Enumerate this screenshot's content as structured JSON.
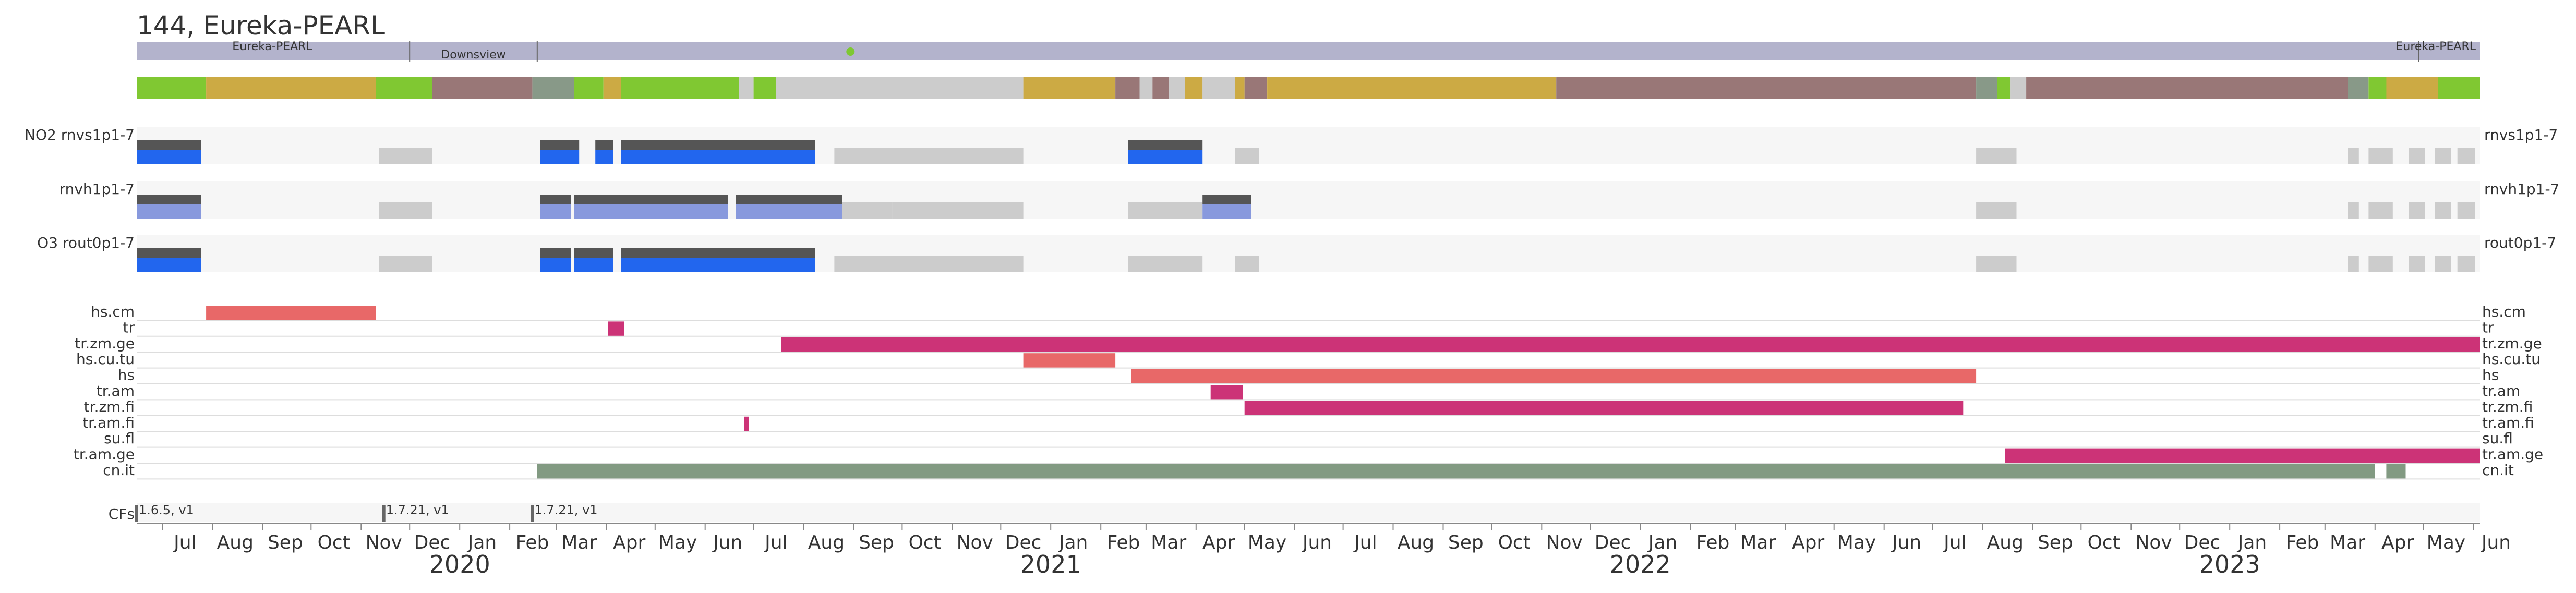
{
  "colors": {
    "timeline": "#b3b3cc",
    "track_bg": "#f6f6f6",
    "gap": "#cccccc",
    "data_dark": "#555555",
    "data_blue": "#2266ee",
    "data_blue_light": "#8899dd",
    "green_marker": "#7ec832",
    "flag_salmon": "#e86868",
    "flag_magenta": "#cc3377",
    "flag_sage": "#829a82",
    "status_colors": {
      "green": "#80c832",
      "gold": "#ccaa44",
      "brown": "#997777",
      "sage": "#889988",
      "gray": "#cccccc"
    }
  },
  "chart_data": {
    "type": "timeline",
    "title": "144, Eureka-PEARL",
    "x_range": [
      "2019-06-15",
      "2023-06-05"
    ],
    "months": [
      "Jul",
      "Aug",
      "Sep",
      "Oct",
      "Nov",
      "Dec",
      "Jan",
      "Feb",
      "Mar",
      "Apr",
      "May",
      "Jun",
      "Jul",
      "Aug",
      "Sep",
      "Oct",
      "Nov",
      "Dec",
      "Jan",
      "Feb",
      "Mar",
      "Apr",
      "May",
      "Jun",
      "Jul",
      "Aug",
      "Sep",
      "Oct",
      "Nov",
      "Dec",
      "Jan",
      "Feb",
      "Mar",
      "Apr",
      "May",
      "Jun",
      "Jul",
      "Aug",
      "Sep",
      "Oct",
      "Nov",
      "Dec",
      "Jan",
      "Feb",
      "Mar",
      "Apr",
      "May",
      "Jun"
    ],
    "years": [
      "2020",
      "2021",
      "2022",
      "2023"
    ],
    "locations": [
      {
        "label": "Eureka-PEARL",
        "start": "2019-06-15",
        "end": "2019-12-01"
      },
      {
        "label": "Downsview",
        "start": "2019-12-01",
        "end": "2020-02-18"
      },
      {
        "label": "",
        "start": "2020-02-18",
        "end": "2023-04-28"
      },
      {
        "label": "Eureka-PEARL",
        "start": "2023-04-28",
        "end": "2023-06-05"
      }
    ],
    "status_marker": {
      "date": "2020-08-30"
    },
    "status_bar": [
      [
        "2019-06-15",
        "2019-07-28",
        "green"
      ],
      [
        "2019-07-28",
        "2019-11-10",
        "gold"
      ],
      [
        "2019-11-10",
        "2019-12-15",
        "green"
      ],
      [
        "2019-12-15",
        "2020-02-15",
        "brown"
      ],
      [
        "2020-02-15",
        "2020-03-12",
        "sage"
      ],
      [
        "2020-03-12",
        "2020-03-30",
        "green"
      ],
      [
        "2020-03-30",
        "2020-04-10",
        "gold"
      ],
      [
        "2020-04-10",
        "2020-06-22",
        "green"
      ],
      [
        "2020-06-22",
        "2020-07-01",
        "gray"
      ],
      [
        "2020-07-01",
        "2020-07-15",
        "green"
      ],
      [
        "2020-07-15",
        "2020-12-15",
        "gray"
      ],
      [
        "2020-12-15",
        "2021-02-10",
        "gold"
      ],
      [
        "2021-02-10",
        "2021-02-25",
        "brown"
      ],
      [
        "2021-02-25",
        "2021-03-05",
        "gray"
      ],
      [
        "2021-03-05",
        "2021-03-15",
        "brown"
      ],
      [
        "2021-03-15",
        "2021-03-25",
        "gray"
      ],
      [
        "2021-03-25",
        "2021-04-05",
        "gold"
      ],
      [
        "2021-04-05",
        "2021-04-25",
        "gray"
      ],
      [
        "2021-04-25",
        "2021-05-01",
        "gold"
      ],
      [
        "2021-05-01",
        "2021-05-15",
        "brown"
      ],
      [
        "2021-05-15",
        "2021-11-10",
        "gold"
      ],
      [
        "2021-11-10",
        "2022-07-28",
        "brown"
      ],
      [
        "2022-07-28",
        "2022-08-10",
        "sage"
      ],
      [
        "2022-08-10",
        "2022-08-18",
        "green"
      ],
      [
        "2022-08-18",
        "2022-08-28",
        "gray"
      ],
      [
        "2022-08-28",
        "2023-03-15",
        "brown"
      ],
      [
        "2023-03-15",
        "2023-03-28",
        "sage"
      ],
      [
        "2023-03-28",
        "2023-04-08",
        "green"
      ],
      [
        "2023-04-08",
        "2023-05-10",
        "gold"
      ],
      [
        "2023-05-10",
        "2023-06-05",
        "green"
      ]
    ],
    "data_tracks": [
      {
        "left_label": "NO2  rnvs1p1-7",
        "right_label": "rnvs1p1-7",
        "data": [
          [
            "2019-06-15",
            "2019-07-25"
          ],
          [
            "2020-02-20",
            "2020-03-15"
          ],
          [
            "2020-03-25",
            "2020-04-05"
          ],
          [
            "2020-04-10",
            "2020-08-08"
          ],
          [
            "2021-02-18",
            "2021-04-05"
          ]
        ],
        "gaps": [
          [
            "2019-11-12",
            "2019-12-15"
          ],
          [
            "2020-08-20",
            "2020-12-15"
          ],
          [
            "2021-04-25",
            "2021-05-10"
          ],
          [
            "2022-07-28",
            "2022-08-22"
          ],
          [
            "2023-03-15",
            "2023-03-22"
          ],
          [
            "2023-03-28",
            "2023-04-12"
          ],
          [
            "2023-04-22",
            "2023-05-02"
          ],
          [
            "2023-05-08",
            "2023-05-18"
          ],
          [
            "2023-05-22",
            "2023-06-02"
          ]
        ]
      },
      {
        "left_label": "rnvh1p1-7",
        "right_label": "rnvh1p1-7",
        "data": [
          [
            "2019-06-15",
            "2019-07-25"
          ],
          [
            "2020-02-20",
            "2020-03-10"
          ],
          [
            "2020-03-12",
            "2020-06-15"
          ],
          [
            "2020-06-20",
            "2020-08-25"
          ],
          [
            "2021-04-05",
            "2021-05-05"
          ]
        ],
        "gaps": [
          [
            "2019-11-12",
            "2019-12-15"
          ],
          [
            "2020-08-25",
            "2020-09-25"
          ],
          [
            "2020-09-25",
            "2020-12-15"
          ],
          [
            "2021-02-18",
            "2021-04-05"
          ],
          [
            "2022-07-28",
            "2022-08-22"
          ],
          [
            "2023-03-15",
            "2023-03-22"
          ],
          [
            "2023-03-28",
            "2023-04-12"
          ],
          [
            "2023-04-22",
            "2023-05-02"
          ],
          [
            "2023-05-08",
            "2023-05-18"
          ],
          [
            "2023-05-22",
            "2023-06-02"
          ]
        ]
      },
      {
        "left_label": "O3  rout0p1-7",
        "right_label": "rout0p1-7",
        "data": [
          [
            "2019-06-15",
            "2019-07-25"
          ],
          [
            "2020-02-20",
            "2020-03-10"
          ],
          [
            "2020-03-12",
            "2020-04-05"
          ],
          [
            "2020-04-10",
            "2020-08-08"
          ]
        ],
        "gaps": [
          [
            "2019-11-12",
            "2019-12-15"
          ],
          [
            "2020-08-20",
            "2020-12-15"
          ],
          [
            "2021-02-18",
            "2021-04-05"
          ],
          [
            "2021-04-25",
            "2021-05-10"
          ],
          [
            "2022-07-28",
            "2022-08-22"
          ],
          [
            "2023-03-15",
            "2023-03-22"
          ],
          [
            "2023-03-28",
            "2023-04-12"
          ],
          [
            "2023-04-22",
            "2023-05-02"
          ],
          [
            "2023-05-08",
            "2023-05-18"
          ],
          [
            "2023-05-22",
            "2023-06-02"
          ]
        ]
      }
    ],
    "flag_rows": [
      {
        "label": "hs.cm",
        "color": "salmon",
        "spans": [
          [
            "2019-07-28",
            "2019-11-10"
          ]
        ]
      },
      {
        "label": "tr",
        "color": "magenta",
        "spans": [
          [
            "2020-04-02",
            "2020-04-12"
          ]
        ]
      },
      {
        "label": "tr.zm.ge",
        "color": "magenta",
        "spans": [
          [
            "2020-07-18",
            "2023-06-05"
          ]
        ]
      },
      {
        "label": "hs.cu.tu",
        "color": "salmon",
        "spans": [
          [
            "2020-12-15",
            "2021-02-10"
          ]
        ]
      },
      {
        "label": "hs",
        "color": "salmon",
        "spans": [
          [
            "2021-02-20",
            "2022-07-28"
          ]
        ]
      },
      {
        "label": "tr.am",
        "color": "magenta",
        "spans": [
          [
            "2021-04-10",
            "2021-04-30"
          ]
        ]
      },
      {
        "label": "tr.zm.fi",
        "color": "magenta",
        "spans": [
          [
            "2021-05-01",
            "2022-07-20"
          ]
        ]
      },
      {
        "label": "tr.am.fi",
        "color": "magenta",
        "spans": [
          [
            "2020-06-25",
            "2020-06-28"
          ]
        ]
      },
      {
        "label": "su.fl",
        "color": "magenta",
        "spans": []
      },
      {
        "label": "tr.am.ge",
        "color": "magenta",
        "spans": [
          [
            "2022-08-15",
            "2023-06-05"
          ]
        ]
      },
      {
        "label": "cn.it",
        "color": "sage",
        "spans": [
          [
            "2020-02-18",
            "2023-04-01"
          ],
          [
            "2023-04-08",
            "2023-04-20"
          ]
        ]
      }
    ],
    "cfs": {
      "label": "CFs",
      "events": [
        {
          "date": "2019-06-15",
          "text": "1.6.5, v1"
        },
        {
          "date": "2019-11-15",
          "text": "1.7.21, v1"
        },
        {
          "date": "2020-02-15",
          "text": "1.7.21, v1"
        }
      ]
    }
  }
}
